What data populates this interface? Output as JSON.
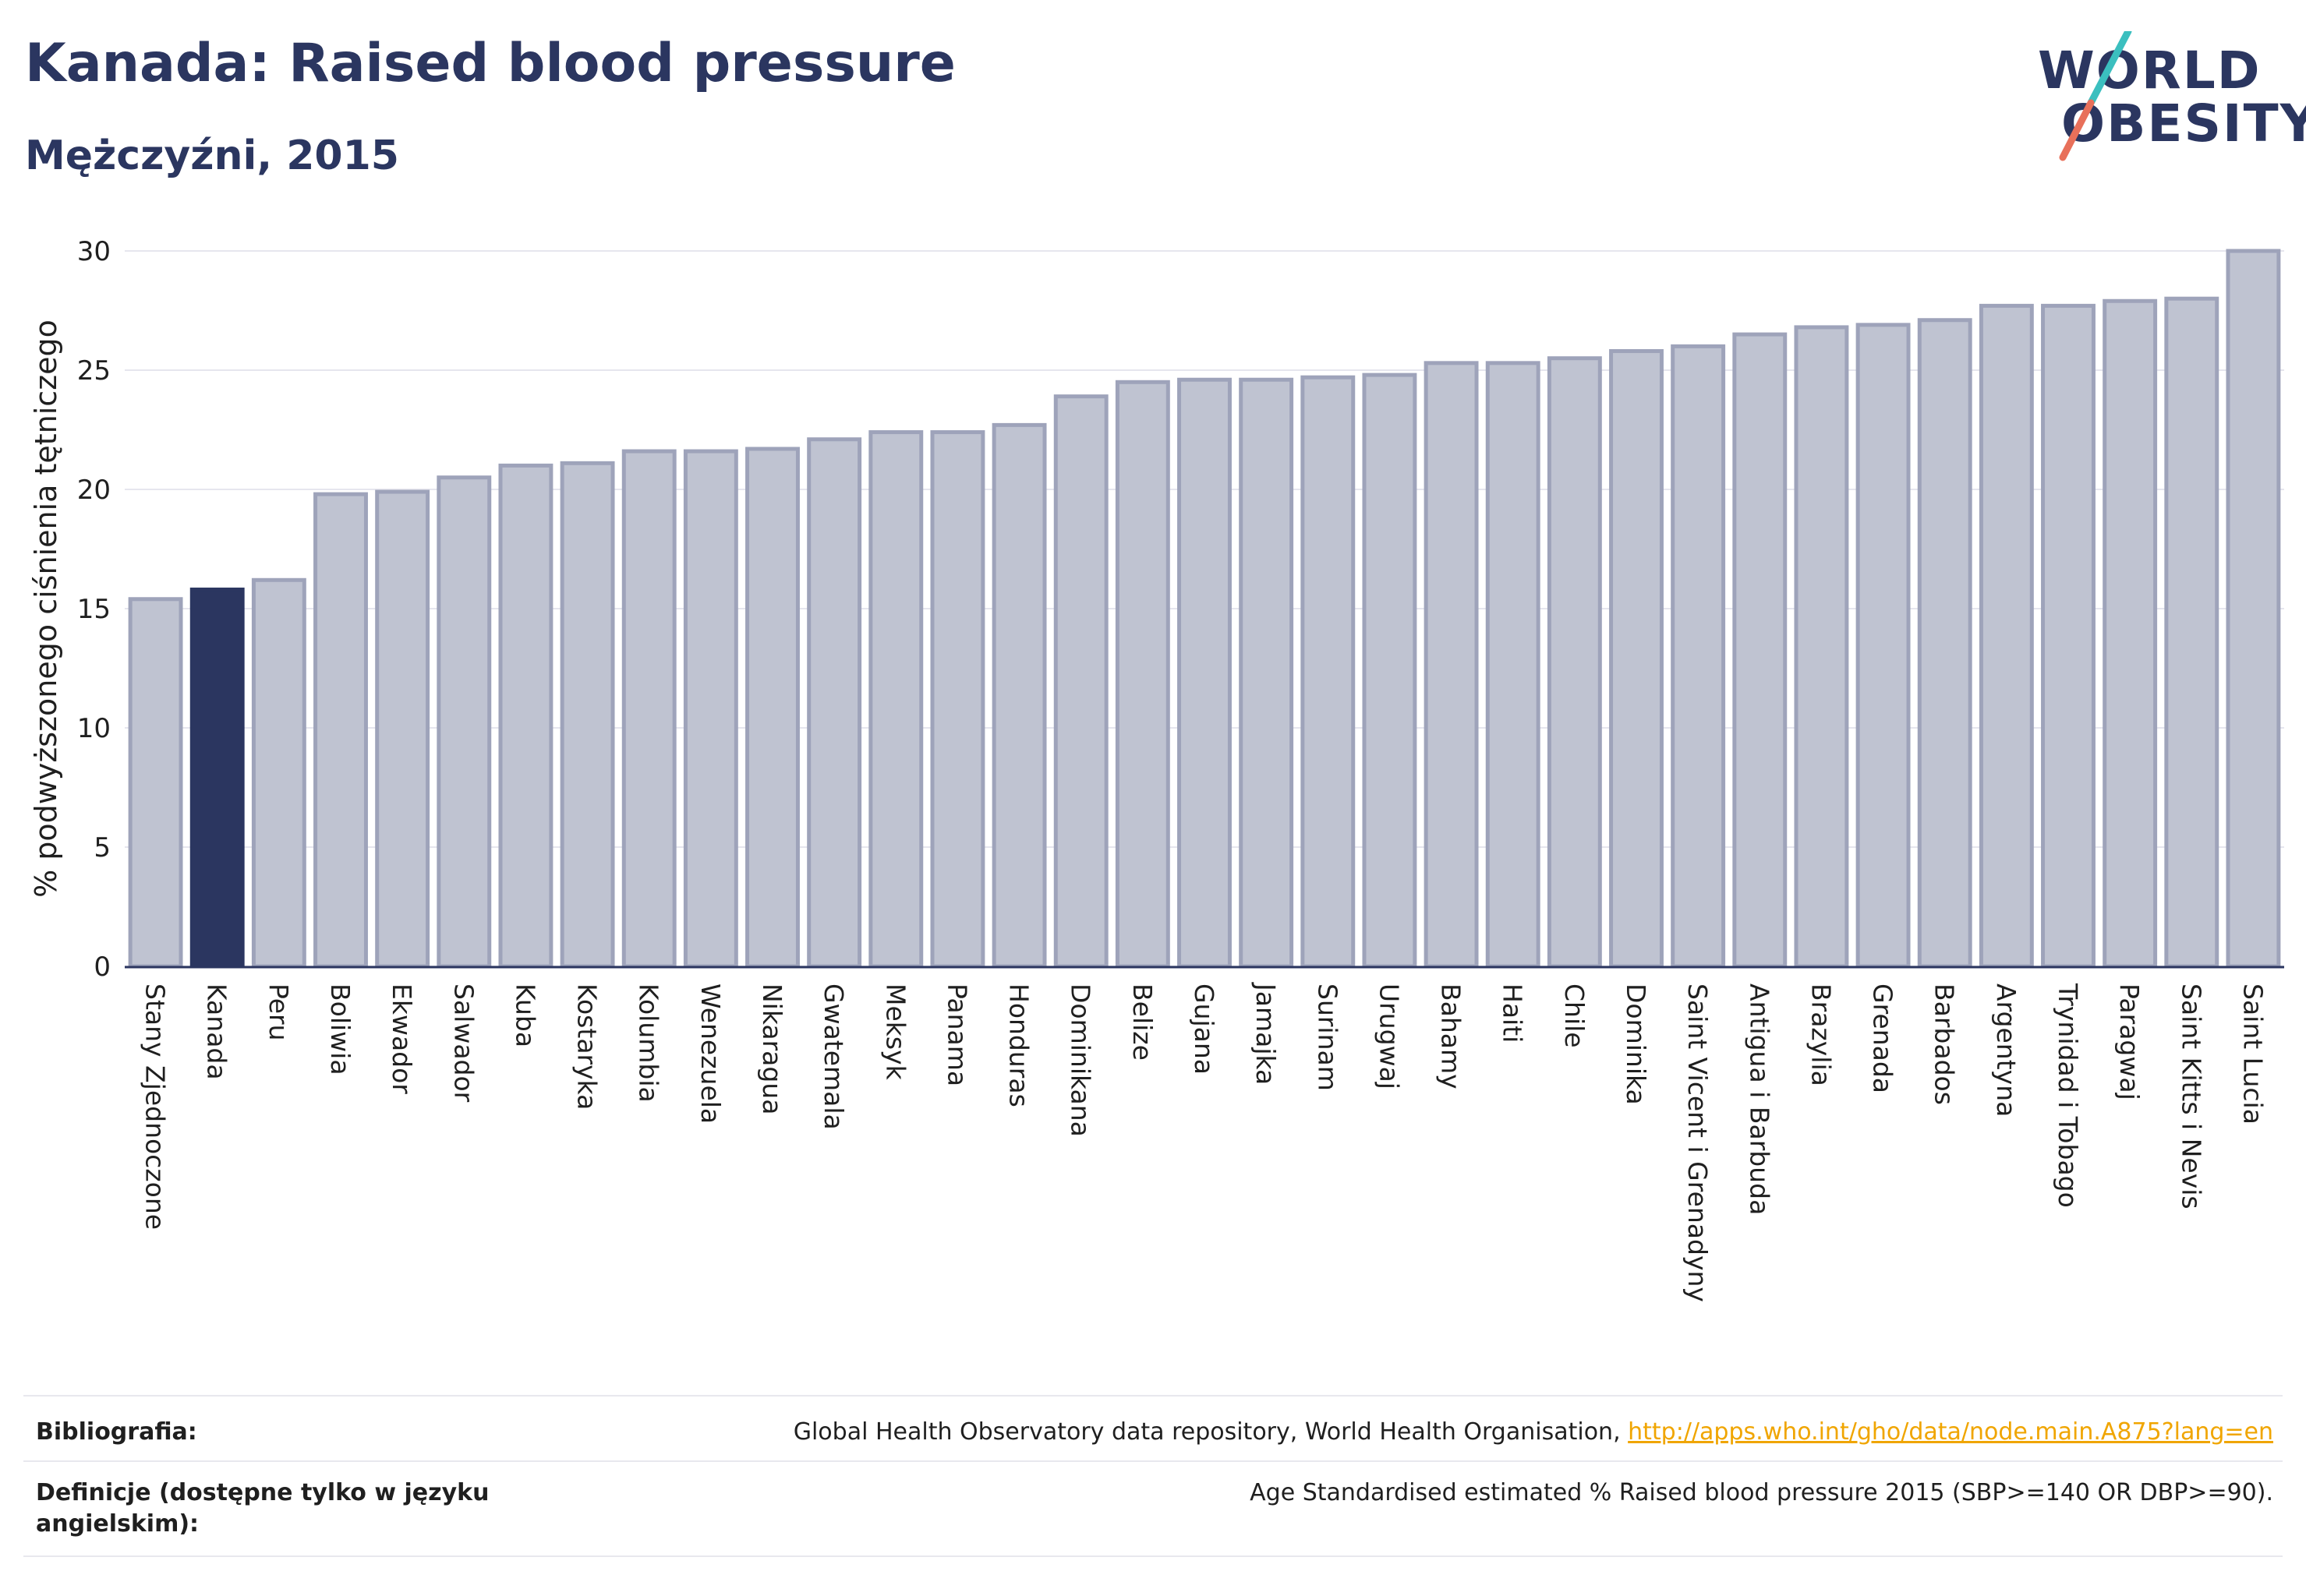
{
  "header": {
    "title": "Kanada: Raised blood pressure",
    "subtitle": "Mężczyźni, 2015"
  },
  "logo": {
    "line1": "WORLD",
    "line2": "OBESITY",
    "colors": {
      "text": "#2b3660",
      "slash_top": "#3bbfbf",
      "slash_bottom": "#e8705a"
    }
  },
  "colors": {
    "bar": "#bfc3d1",
    "bar_edge": "#9ea3ba",
    "highlight": "#2b3660",
    "axis": "#2b3660",
    "grid": "#e6e6ee"
  },
  "chart_data": {
    "type": "bar",
    "title": "Kanada: Raised blood pressure",
    "subtitle": "Mężczyźni, 2015",
    "xlabel": "",
    "ylabel": "% podwyższonego ciśnienia tętniczego",
    "ylim": [
      0,
      30
    ],
    "yticks": [
      0,
      5,
      10,
      15,
      20,
      25,
      30
    ],
    "grid": true,
    "highlight": "Kanada",
    "categories": [
      "Stany Zjednoczone",
      "Kanada",
      "Peru",
      "Boliwia",
      "Ekwador",
      "Salwador",
      "Kuba",
      "Kostaryka",
      "Kolumbia",
      "Wenezuela",
      "Nikaragua",
      "Gwatemala",
      "Meksyk",
      "Panama",
      "Honduras",
      "Dominikana",
      "Belize",
      "Gujana",
      "Jamajka",
      "Surinam",
      "Urugwaj",
      "Bahamy",
      "Haiti",
      "Chile",
      "Dominika",
      "Saint Vicent i Grenadyny",
      "Antigua i Barbuda",
      "Brazylia",
      "Grenada",
      "Barbados",
      "Argentyna",
      "Trynidad i Tobago",
      "Paragwaj",
      "Saint Kitts i Nevis",
      "Saint Lucia"
    ],
    "values": [
      15.4,
      15.8,
      16.2,
      19.8,
      19.9,
      20.5,
      21.0,
      21.1,
      21.6,
      21.6,
      21.7,
      22.1,
      22.4,
      22.4,
      22.7,
      23.9,
      24.5,
      24.6,
      24.6,
      24.7,
      24.8,
      25.3,
      25.3,
      25.5,
      25.8,
      26.0,
      26.5,
      26.8,
      26.9,
      27.1,
      27.7,
      27.7,
      27.9,
      28.0,
      30.0
    ]
  },
  "footer": {
    "bibliography_label": "Bibliografia:",
    "bibliography_text": "Global Health Observatory data repository, World Health Organisation, ",
    "bibliography_link": "http://apps.who.int/gho/data/node.main.A875?lang=en",
    "definitions_label_line1": "Definicje (dostępne tylko w języku",
    "definitions_label_line2": "angielskim):",
    "definitions_text": "Age Standardised estimated % Raised blood pressure 2015 (SBP>=140 OR DBP>=90)."
  }
}
